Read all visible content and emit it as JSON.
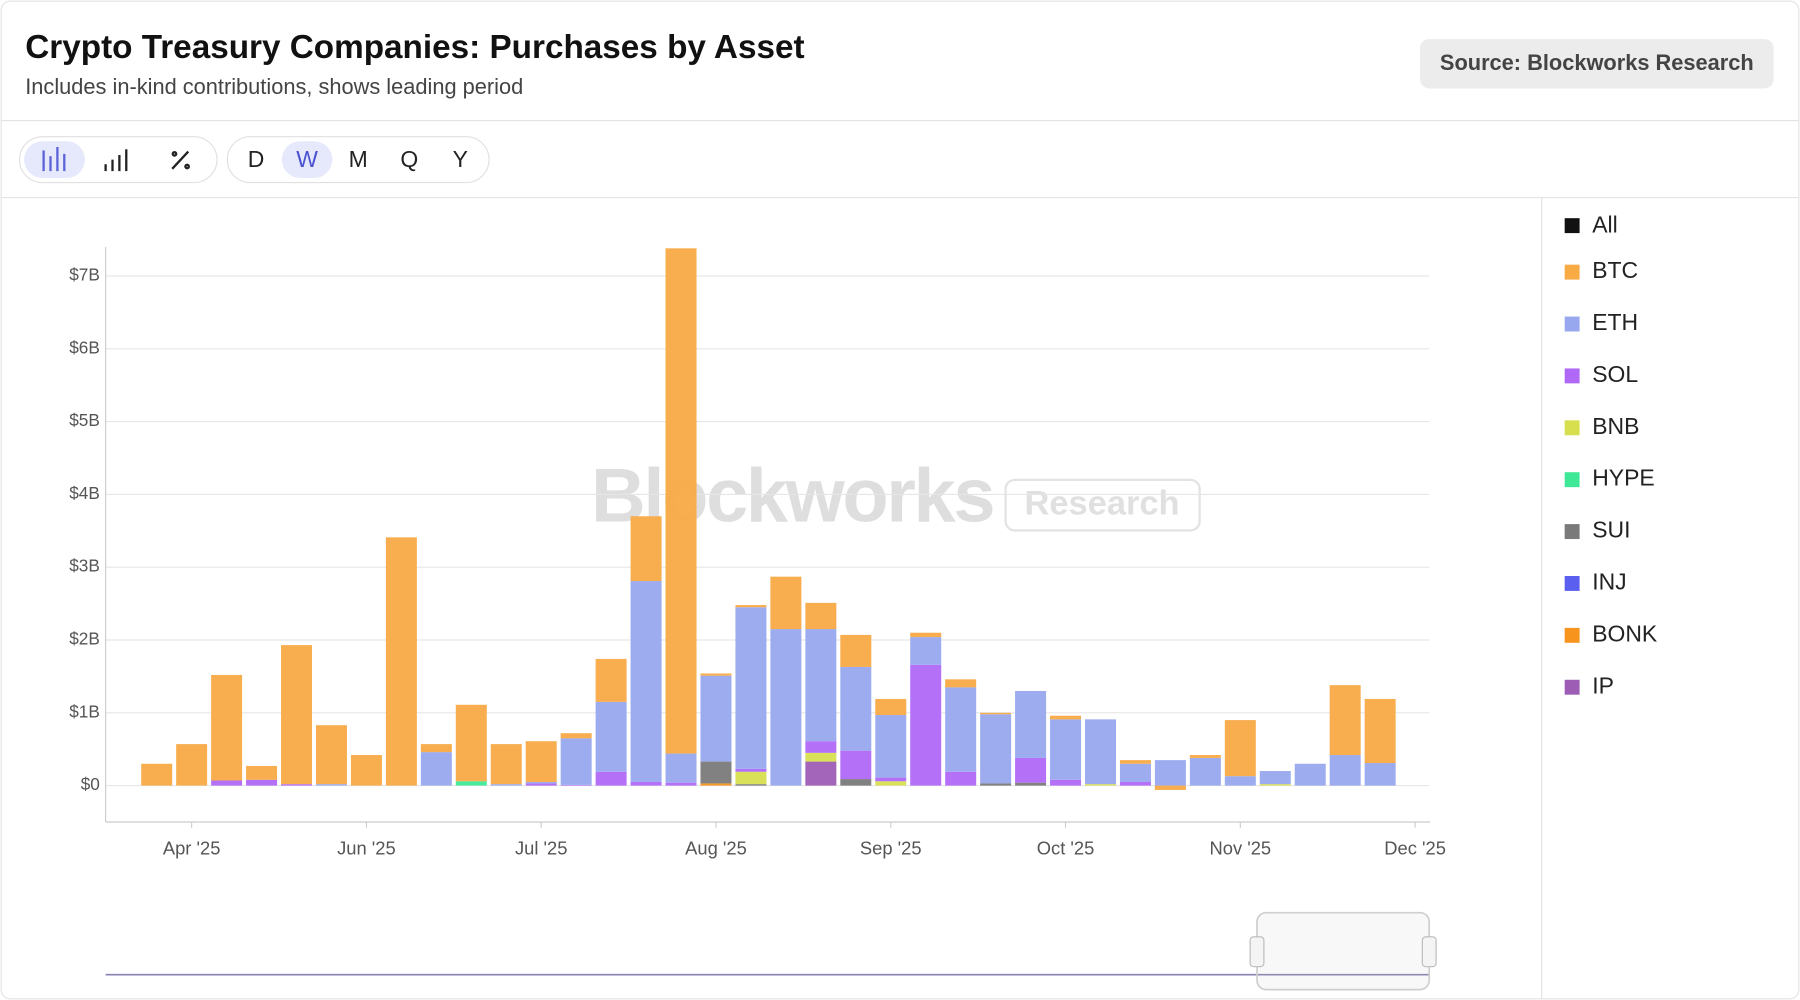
{
  "header": {
    "title": "Crypto Treasury Companies: Purchases by Asset",
    "subtitle": "Includes in-kind contributions, shows leading period",
    "source": "Source: Blockworks Research"
  },
  "controls": {
    "periods": [
      "D",
      "W",
      "M",
      "Q",
      "Y"
    ],
    "active_period": "W"
  },
  "watermark": {
    "brand": "Blockworks",
    "tag": "Research"
  },
  "legend_all": "All",
  "chart_data": {
    "type": "stacked-bar",
    "categories": [
      null,
      "Apr '25",
      null,
      null,
      null,
      null,
      "Jun '25",
      null,
      null,
      null,
      null,
      "Jul '25",
      null,
      null,
      null,
      null,
      "Aug '25",
      null,
      null,
      null,
      null,
      "Sep '25",
      null,
      null,
      null,
      null,
      "Oct '25",
      null,
      null,
      null,
      null,
      "Nov '25",
      null,
      null,
      null,
      null,
      "Dec '25"
    ],
    "ylim": [
      -0.5,
      7.4
    ],
    "yticks": [
      {
        "value": 0,
        "label": "$0"
      },
      {
        "value": 1,
        "label": "$1B"
      },
      {
        "value": 2,
        "label": "$2B"
      },
      {
        "value": 3,
        "label": "$3B"
      },
      {
        "value": 4,
        "label": "$4B"
      },
      {
        "value": 5,
        "label": "$5B"
      },
      {
        "value": 6,
        "label": "$6B"
      },
      {
        "value": 7,
        "label": "$7B"
      }
    ],
    "grid": true,
    "series": [
      {
        "name": "BTC",
        "color": "#f8aa45",
        "values": [
          0.3,
          0.57,
          1.45,
          0.19,
          1.91,
          0.81,
          0.42,
          3.41,
          0.11,
          1.05,
          0.55,
          0.56,
          0.07,
          0.59,
          0.89,
          6.94,
          0.03,
          0.03,
          0.72,
          0.36,
          0.44,
          0.22,
          0.06,
          0.11,
          0.02,
          0,
          0.05,
          0,
          0.05,
          -0.06,
          0.04,
          0.77,
          0,
          0,
          0.96,
          0.88,
          null
        ]
      },
      {
        "name": "ETH",
        "color": "#97a8ee",
        "values": [
          0,
          0,
          0,
          0,
          0,
          0.02,
          0,
          0,
          0.46,
          0,
          0.02,
          0.02,
          0.64,
          0.96,
          2.76,
          0.4,
          1.18,
          2.22,
          2.15,
          1.54,
          1.15,
          0.86,
          0.38,
          1.16,
          0.95,
          0.92,
          0.83,
          0.89,
          0.25,
          0.35,
          0.38,
          0.13,
          0.18,
          0.3,
          0.42,
          0.31,
          null
        ]
      },
      {
        "name": "SOL",
        "color": "#b068f7",
        "values": [
          0,
          0,
          0.07,
          0.08,
          0.02,
          0,
          0,
          0,
          0,
          0,
          0,
          0.03,
          0.01,
          0.19,
          0.05,
          0.04,
          0,
          0.04,
          0,
          0.16,
          0.39,
          0.05,
          1.66,
          0.19,
          0,
          0.34,
          0.08,
          0,
          0.05,
          0,
          0,
          0,
          0,
          0,
          0,
          0,
          null
        ]
      },
      {
        "name": "BNB",
        "color": "#d7df4f",
        "values": [
          0,
          0,
          0,
          0,
          0,
          0,
          0,
          0,
          0,
          0,
          0,
          0,
          0,
          0,
          0,
          0,
          0,
          0.17,
          0,
          0.12,
          0,
          0.06,
          0,
          0,
          0,
          0,
          0,
          0.02,
          0,
          0,
          0,
          0,
          0.02,
          0,
          0,
          0,
          null
        ]
      },
      {
        "name": "HYPE",
        "color": "#3ee896",
        "values": [
          0,
          0,
          0,
          0,
          0,
          0,
          0,
          0,
          0,
          0.06,
          0,
          0,
          0,
          0,
          0,
          0,
          0,
          0,
          0,
          0,
          0,
          0,
          0,
          0,
          0,
          0,
          0,
          0,
          0,
          0,
          0,
          0,
          0,
          0,
          0,
          0,
          null
        ]
      },
      {
        "name": "SUI",
        "color": "#7a7a7a",
        "values": [
          0,
          0,
          0,
          0,
          0,
          0,
          0,
          0,
          0,
          0,
          0,
          0,
          0,
          0,
          0,
          0,
          0.3,
          0.02,
          0,
          0,
          0.09,
          0,
          0,
          0,
          0.03,
          0.04,
          0,
          0,
          0,
          0,
          0,
          0,
          0,
          0,
          0,
          0,
          null
        ]
      },
      {
        "name": "INJ",
        "color": "#5b5ff0",
        "values": [
          0,
          0,
          0,
          0,
          0,
          0,
          0,
          0,
          0,
          0,
          0,
          0,
          0,
          0,
          0,
          0,
          0,
          0,
          0,
          0,
          0,
          0,
          0,
          0,
          0,
          0,
          0,
          0,
          0,
          0,
          0,
          0,
          0,
          0,
          0,
          0,
          null
        ]
      },
      {
        "name": "BONK",
        "color": "#f7941d",
        "values": [
          0,
          0,
          0,
          0,
          0,
          0,
          0,
          0,
          0,
          0,
          0,
          0,
          0,
          0,
          0,
          0,
          0.03,
          0,
          0,
          0,
          0,
          0,
          0,
          0,
          0,
          0,
          0,
          0,
          0,
          0,
          0,
          0,
          0,
          0,
          0,
          0,
          null
        ]
      },
      {
        "name": "IP",
        "color": "#9e5db5",
        "values": [
          0,
          0,
          0,
          0,
          0,
          0,
          0,
          0,
          0,
          0,
          0,
          0,
          0,
          0,
          0,
          0,
          0,
          0,
          0,
          0.33,
          0,
          0,
          0,
          0,
          0,
          0,
          0,
          0,
          0,
          0,
          0,
          0,
          0,
          0,
          0,
          0,
          null
        ]
      }
    ]
  }
}
